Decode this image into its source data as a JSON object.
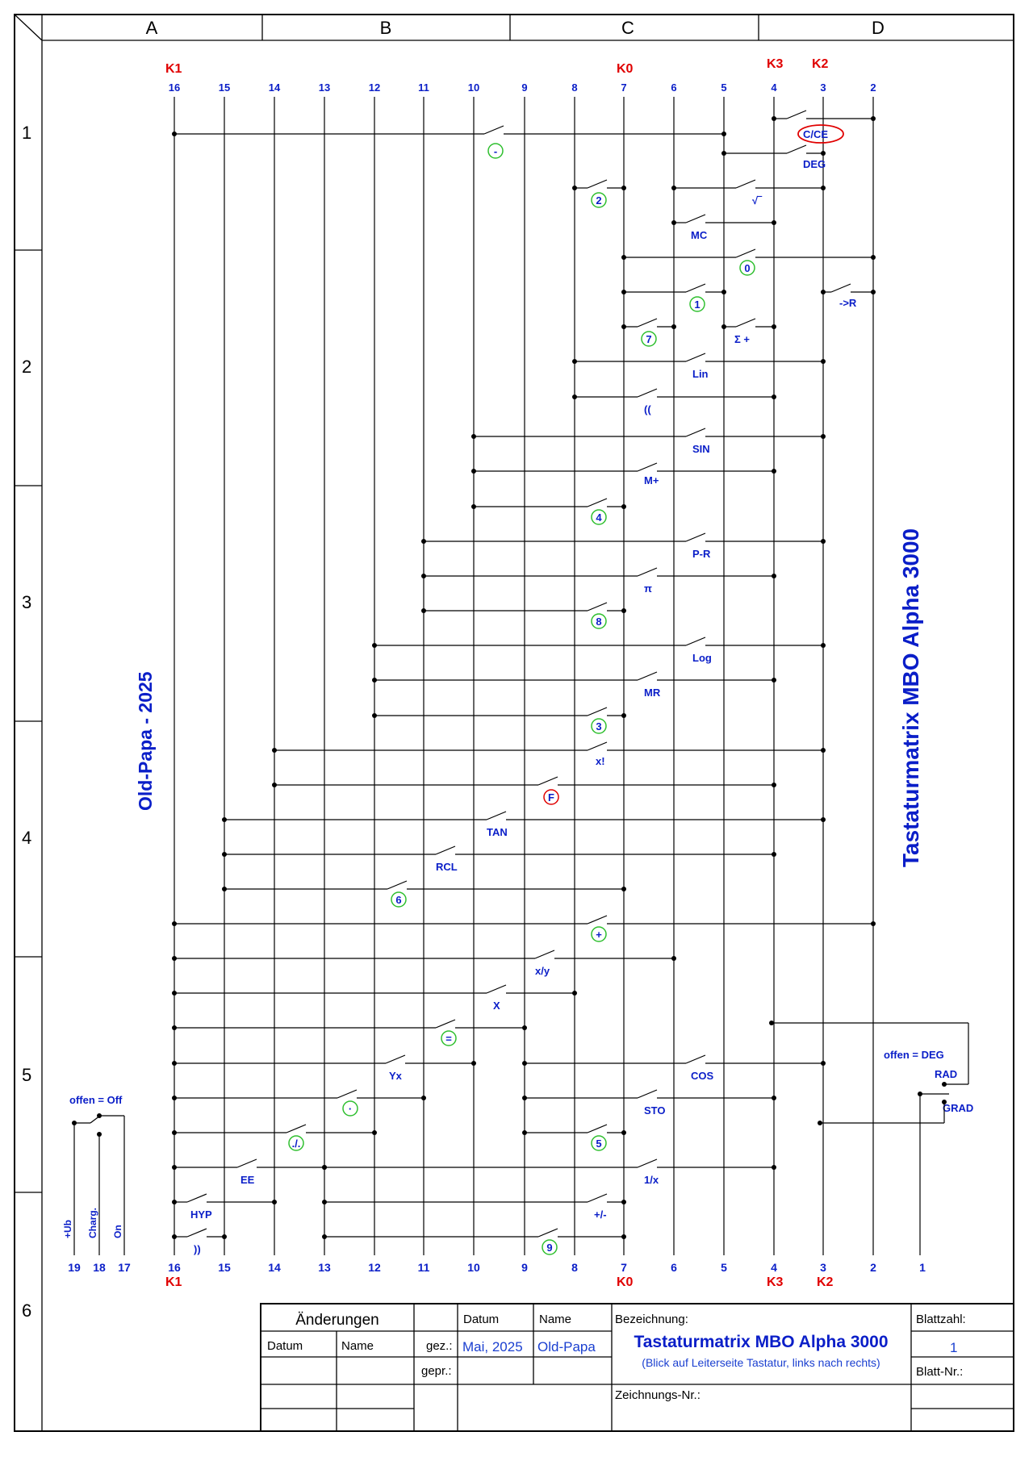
{
  "frame": {
    "col_labels": [
      "A",
      "B",
      "C",
      "D"
    ],
    "row_labels": [
      "1",
      "2",
      "3",
      "4",
      "5",
      "6"
    ]
  },
  "title_vertical": "Tastaturmatrix MBO Alpha 3000",
  "author_vertical": "Old-Papa - 2025",
  "pins_top": [
    "16",
    "15",
    "14",
    "13",
    "12",
    "11",
    "10",
    "9",
    "8",
    "7",
    "6",
    "5",
    "4",
    "3",
    "2"
  ],
  "pins_bottom": [
    "19",
    "18",
    "17",
    "16",
    "15",
    "14",
    "13",
    "12",
    "11",
    "10",
    "9",
    "8",
    "7",
    "6",
    "5",
    "4",
    "3",
    "2",
    "1"
  ],
  "groups": {
    "k1": "K1",
    "k0": "K0",
    "k3": "K3",
    "k2": "K2"
  },
  "keys": [
    {
      "label": "-",
      "circled": "green",
      "row": 1
    },
    {
      "label": "C/CE",
      "circled": "red-oval",
      "row": 1
    },
    {
      "label": "DEG"
    },
    {
      "label": "2",
      "circled": "green"
    },
    {
      "label": "√‾"
    },
    {
      "label": "MC"
    },
    {
      "label": "0",
      "circled": "green"
    },
    {
      "label": "1",
      "circled": "green"
    },
    {
      "label": "->R"
    },
    {
      "label": "7",
      "circled": "green"
    },
    {
      "label": "Σ +"
    },
    {
      "label": "Lin"
    },
    {
      "label": "(("
    },
    {
      "label": "SIN"
    },
    {
      "label": "M+"
    },
    {
      "label": "4",
      "circled": "green"
    },
    {
      "label": "P-R"
    },
    {
      "label": "π"
    },
    {
      "label": "8",
      "circled": "green"
    },
    {
      "label": "Log"
    },
    {
      "label": "MR"
    },
    {
      "label": "3",
      "circled": "green"
    },
    {
      "label": "x!"
    },
    {
      "label": "F",
      "circled": "red"
    },
    {
      "label": "TAN"
    },
    {
      "label": "RCL"
    },
    {
      "label": "6",
      "circled": "green"
    },
    {
      "label": "+",
      "circled": "green"
    },
    {
      "label": "x/y"
    },
    {
      "label": "X"
    },
    {
      "label": "=",
      "circled": "green"
    },
    {
      "label": "Yx"
    },
    {
      "label": "COS"
    },
    {
      "label": "·",
      "circled": "green"
    },
    {
      "label": "STO"
    },
    {
      "label": "./.",
      "circled": "green"
    },
    {
      "label": "5",
      "circled": "green"
    },
    {
      "label": "EE"
    },
    {
      "label": "1/x"
    },
    {
      "label": "HYP"
    },
    {
      "label": "+/-"
    },
    {
      "label": "))"
    },
    {
      "label": "9",
      "circled": "green"
    }
  ],
  "power_switch": {
    "note": "offen = Off",
    "pin_labels": [
      "+Ub",
      "Charg.",
      "On"
    ]
  },
  "angle_switch": {
    "note": "offen = DEG",
    "rad": "RAD",
    "grad": "GRAD"
  },
  "title_block": {
    "changes_header": "Änderungen",
    "datum": "Datum",
    "name": "Name",
    "gez": "gez.:",
    "gepr": "gepr.:",
    "date_value": "Mai, 2025",
    "name_value": "Old-Papa",
    "bezeichnung": "Bezeichnung:",
    "title": "Tastaturmatrix MBO Alpha 3000",
    "subtitle": "(Blick auf Leiterseite Tastatur, links nach rechts)",
    "zeichnungs_nr": "Zeichnungs-Nr.:",
    "blattzahl": "Blattzahl:",
    "blattzahl_value": "1",
    "blatt_nr": "Blatt-Nr.:"
  },
  "colors": {
    "blue_text": "#0a1ec8",
    "red_text": "#e00000",
    "green_circle": "#2fbf2f",
    "red_circle": "#e00000"
  }
}
